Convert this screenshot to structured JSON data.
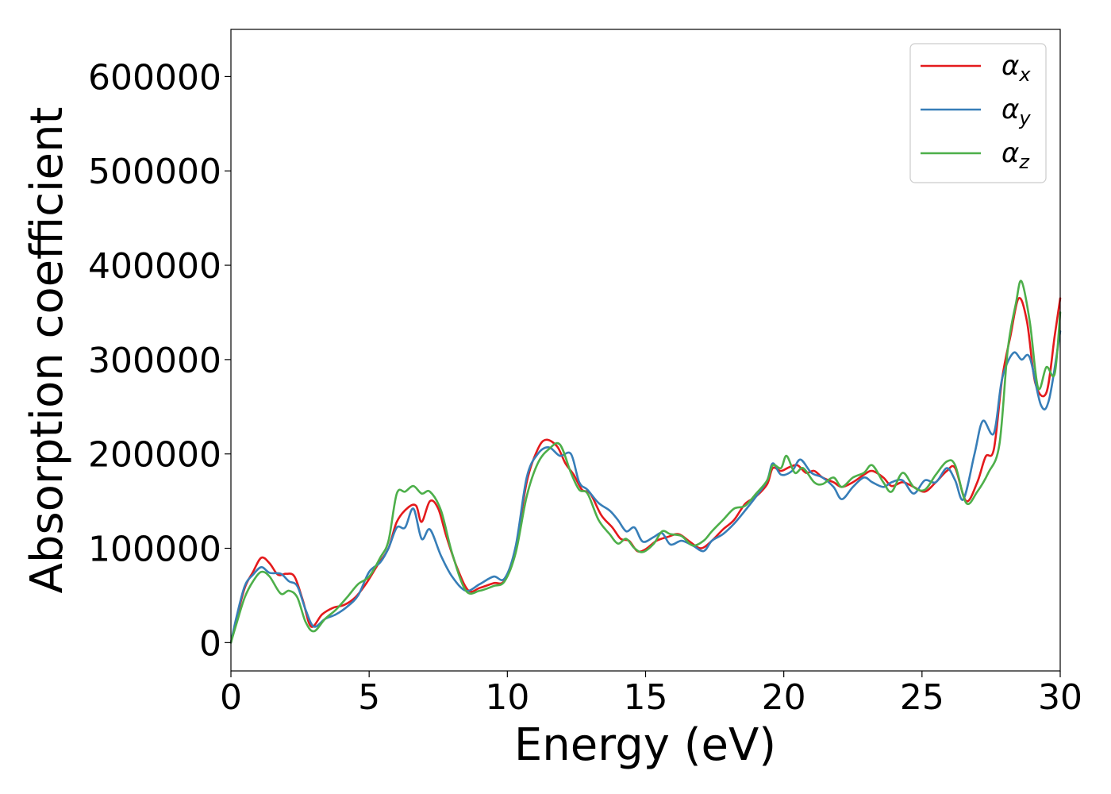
{
  "chart_data": {
    "type": "line",
    "title": "",
    "xlabel": "Energy (eV)",
    "ylabel": "Absorption coefficient",
    "xlim": [
      0,
      30
    ],
    "ylim": [
      -30000,
      650000
    ],
    "xticks": [
      0,
      5,
      10,
      15,
      20,
      25,
      30
    ],
    "xtick_labels": [
      "0",
      "5",
      "10",
      "15",
      "20",
      "25",
      "30"
    ],
    "yticks": [
      0,
      100000,
      200000,
      300000,
      400000,
      500000,
      600000
    ],
    "ytick_labels": [
      "0",
      "100000",
      "200000",
      "300000",
      "400000",
      "500000",
      "600000"
    ],
    "grid": false,
    "legend_position": "top-right",
    "series": [
      {
        "name": "αx",
        "legend_main": "α",
        "legend_sub": "x",
        "color": "#e41a1c",
        "points": [
          [
            0,
            0
          ],
          [
            0.2,
            25000
          ],
          [
            0.5,
            58000
          ],
          [
            0.8,
            75000
          ],
          [
            1.1,
            90000
          ],
          [
            1.4,
            84000
          ],
          [
            1.7,
            72000
          ],
          [
            2.0,
            73000
          ],
          [
            2.3,
            70000
          ],
          [
            2.6,
            45000
          ],
          [
            2.9,
            17000
          ],
          [
            3.3,
            30000
          ],
          [
            3.7,
            37000
          ],
          [
            4.1,
            40000
          ],
          [
            4.5,
            48000
          ],
          [
            4.9,
            63000
          ],
          [
            5.3,
            82000
          ],
          [
            5.7,
            100000
          ],
          [
            6.0,
            128000
          ],
          [
            6.4,
            143000
          ],
          [
            6.7,
            145000
          ],
          [
            6.9,
            128000
          ],
          [
            7.2,
            150000
          ],
          [
            7.5,
            142000
          ],
          [
            7.8,
            112000
          ],
          [
            8.2,
            78000
          ],
          [
            8.6,
            55000
          ],
          [
            9.0,
            58000
          ],
          [
            9.5,
            63000
          ],
          [
            9.9,
            66000
          ],
          [
            10.3,
            100000
          ],
          [
            10.7,
            170000
          ],
          [
            11.1,
            205000
          ],
          [
            11.4,
            215000
          ],
          [
            11.8,
            208000
          ],
          [
            12.1,
            190000
          ],
          [
            12.4,
            178000
          ],
          [
            12.7,
            162000
          ],
          [
            13.0,
            158000
          ],
          [
            13.4,
            135000
          ],
          [
            13.8,
            122000
          ],
          [
            14.1,
            110000
          ],
          [
            14.4,
            108000
          ],
          [
            14.7,
            97000
          ],
          [
            15.0,
            99000
          ],
          [
            15.4,
            108000
          ],
          [
            15.8,
            112000
          ],
          [
            16.2,
            115000
          ],
          [
            16.6,
            107000
          ],
          [
            17.0,
            100000
          ],
          [
            17.4,
            108000
          ],
          [
            17.8,
            120000
          ],
          [
            18.2,
            130000
          ],
          [
            18.6,
            147000
          ],
          [
            19.0,
            155000
          ],
          [
            19.4,
            168000
          ],
          [
            19.6,
            185000
          ],
          [
            19.9,
            182000
          ],
          [
            20.2,
            186000
          ],
          [
            20.5,
            188000
          ],
          [
            20.8,
            180000
          ],
          [
            21.1,
            182000
          ],
          [
            21.4,
            175000
          ],
          [
            21.8,
            170000
          ],
          [
            22.1,
            165000
          ],
          [
            22.5,
            170000
          ],
          [
            22.9,
            178000
          ],
          [
            23.2,
            182000
          ],
          [
            23.6,
            175000
          ],
          [
            23.9,
            166000
          ],
          [
            24.3,
            170000
          ],
          [
            24.7,
            165000
          ],
          [
            25.1,
            160000
          ],
          [
            25.5,
            170000
          ],
          [
            25.9,
            182000
          ],
          [
            26.2,
            185000
          ],
          [
            26.6,
            150000
          ],
          [
            27.0,
            170000
          ],
          [
            27.3,
            197000
          ],
          [
            27.6,
            205000
          ],
          [
            27.9,
            280000
          ],
          [
            28.2,
            325000
          ],
          [
            28.5,
            365000
          ],
          [
            28.8,
            340000
          ],
          [
            29.1,
            275000
          ],
          [
            29.5,
            265000
          ],
          [
            29.8,
            325000
          ],
          [
            30.0,
            365000
          ]
        ]
      },
      {
        "name": "αy",
        "legend_main": "α",
        "legend_sub": "y",
        "color": "#377eb8",
        "points": [
          [
            0,
            0
          ],
          [
            0.2,
            27000
          ],
          [
            0.5,
            60000
          ],
          [
            0.8,
            72000
          ],
          [
            1.1,
            80000
          ],
          [
            1.4,
            74000
          ],
          [
            1.8,
            73000
          ],
          [
            2.1,
            65000
          ],
          [
            2.4,
            60000
          ],
          [
            2.7,
            35000
          ],
          [
            3.0,
            17000
          ],
          [
            3.4,
            25000
          ],
          [
            3.8,
            30000
          ],
          [
            4.2,
            38000
          ],
          [
            4.6,
            50000
          ],
          [
            5.0,
            75000
          ],
          [
            5.4,
            85000
          ],
          [
            5.7,
            100000
          ],
          [
            6.0,
            122000
          ],
          [
            6.3,
            122000
          ],
          [
            6.6,
            142000
          ],
          [
            6.9,
            110000
          ],
          [
            7.2,
            120000
          ],
          [
            7.6,
            92000
          ],
          [
            8.0,
            70000
          ],
          [
            8.5,
            55000
          ],
          [
            9.0,
            62000
          ],
          [
            9.5,
            70000
          ],
          [
            9.9,
            68000
          ],
          [
            10.3,
            102000
          ],
          [
            10.7,
            175000
          ],
          [
            11.1,
            200000
          ],
          [
            11.5,
            207000
          ],
          [
            11.9,
            198000
          ],
          [
            12.3,
            200000
          ],
          [
            12.6,
            170000
          ],
          [
            12.9,
            162000
          ],
          [
            13.3,
            148000
          ],
          [
            13.7,
            140000
          ],
          [
            14.0,
            130000
          ],
          [
            14.3,
            118000
          ],
          [
            14.6,
            122000
          ],
          [
            14.9,
            107000
          ],
          [
            15.3,
            112000
          ],
          [
            15.6,
            116000
          ],
          [
            15.9,
            104000
          ],
          [
            16.3,
            108000
          ],
          [
            16.7,
            103000
          ],
          [
            17.1,
            97000
          ],
          [
            17.4,
            108000
          ],
          [
            17.8,
            115000
          ],
          [
            18.2,
            126000
          ],
          [
            18.6,
            140000
          ],
          [
            19.0,
            155000
          ],
          [
            19.4,
            172000
          ],
          [
            19.6,
            190000
          ],
          [
            19.9,
            178000
          ],
          [
            20.3,
            182000
          ],
          [
            20.6,
            194000
          ],
          [
            21.0,
            180000
          ],
          [
            21.4,
            175000
          ],
          [
            21.8,
            165000
          ],
          [
            22.1,
            152000
          ],
          [
            22.5,
            165000
          ],
          [
            22.9,
            175000
          ],
          [
            23.2,
            170000
          ],
          [
            23.6,
            165000
          ],
          [
            23.9,
            170000
          ],
          [
            24.3,
            172000
          ],
          [
            24.7,
            158000
          ],
          [
            25.1,
            172000
          ],
          [
            25.5,
            170000
          ],
          [
            25.9,
            185000
          ],
          [
            26.2,
            172000
          ],
          [
            26.5,
            152000
          ],
          [
            26.9,
            200000
          ],
          [
            27.2,
            235000
          ],
          [
            27.6,
            222000
          ],
          [
            27.9,
            280000
          ],
          [
            28.3,
            307000
          ],
          [
            28.6,
            300000
          ],
          [
            28.9,
            302000
          ],
          [
            29.3,
            252000
          ],
          [
            29.6,
            258000
          ],
          [
            30.0,
            330000
          ]
        ]
      },
      {
        "name": "αz",
        "legend_main": "α",
        "legend_sub": "z",
        "color": "#4daf4a",
        "points": [
          [
            0,
            0
          ],
          [
            0.2,
            20000
          ],
          [
            0.5,
            48000
          ],
          [
            0.8,
            65000
          ],
          [
            1.1,
            75000
          ],
          [
            1.4,
            70000
          ],
          [
            1.8,
            52000
          ],
          [
            2.1,
            55000
          ],
          [
            2.4,
            48000
          ],
          [
            2.7,
            22000
          ],
          [
            3.0,
            12000
          ],
          [
            3.4,
            25000
          ],
          [
            3.8,
            35000
          ],
          [
            4.2,
            48000
          ],
          [
            4.6,
            62000
          ],
          [
            5.0,
            70000
          ],
          [
            5.4,
            90000
          ],
          [
            5.7,
            108000
          ],
          [
            6.0,
            158000
          ],
          [
            6.3,
            160000
          ],
          [
            6.6,
            166000
          ],
          [
            6.9,
            158000
          ],
          [
            7.2,
            160000
          ],
          [
            7.6,
            140000
          ],
          [
            8.0,
            95000
          ],
          [
            8.5,
            55000
          ],
          [
            9.0,
            55000
          ],
          [
            9.5,
            60000
          ],
          [
            9.9,
            65000
          ],
          [
            10.3,
            95000
          ],
          [
            10.7,
            155000
          ],
          [
            11.1,
            190000
          ],
          [
            11.5,
            205000
          ],
          [
            11.9,
            210000
          ],
          [
            12.3,
            180000
          ],
          [
            12.6,
            162000
          ],
          [
            12.9,
            158000
          ],
          [
            13.3,
            130000
          ],
          [
            13.7,
            115000
          ],
          [
            14.0,
            105000
          ],
          [
            14.3,
            110000
          ],
          [
            14.6,
            100000
          ],
          [
            14.9,
            96000
          ],
          [
            15.3,
            105000
          ],
          [
            15.6,
            118000
          ],
          [
            15.9,
            115000
          ],
          [
            16.3,
            113000
          ],
          [
            16.7,
            103000
          ],
          [
            17.1,
            108000
          ],
          [
            17.4,
            118000
          ],
          [
            17.8,
            130000
          ],
          [
            18.2,
            142000
          ],
          [
            18.6,
            145000
          ],
          [
            19.0,
            158000
          ],
          [
            19.4,
            172000
          ],
          [
            19.6,
            188000
          ],
          [
            19.9,
            185000
          ],
          [
            20.1,
            198000
          ],
          [
            20.4,
            180000
          ],
          [
            20.7,
            185000
          ],
          [
            21.1,
            170000
          ],
          [
            21.4,
            168000
          ],
          [
            21.8,
            175000
          ],
          [
            22.1,
            165000
          ],
          [
            22.5,
            175000
          ],
          [
            22.9,
            180000
          ],
          [
            23.2,
            188000
          ],
          [
            23.6,
            170000
          ],
          [
            23.9,
            160000
          ],
          [
            24.3,
            180000
          ],
          [
            24.7,
            165000
          ],
          [
            25.1,
            162000
          ],
          [
            25.5,
            178000
          ],
          [
            25.9,
            192000
          ],
          [
            26.2,
            188000
          ],
          [
            26.6,
            148000
          ],
          [
            27.0,
            160000
          ],
          [
            27.4,
            180000
          ],
          [
            27.8,
            210000
          ],
          [
            28.1,
            310000
          ],
          [
            28.4,
            360000
          ],
          [
            28.6,
            383000
          ],
          [
            28.9,
            340000
          ],
          [
            29.2,
            270000
          ],
          [
            29.5,
            292000
          ],
          [
            29.8,
            285000
          ],
          [
            30.0,
            350000
          ]
        ]
      }
    ]
  }
}
